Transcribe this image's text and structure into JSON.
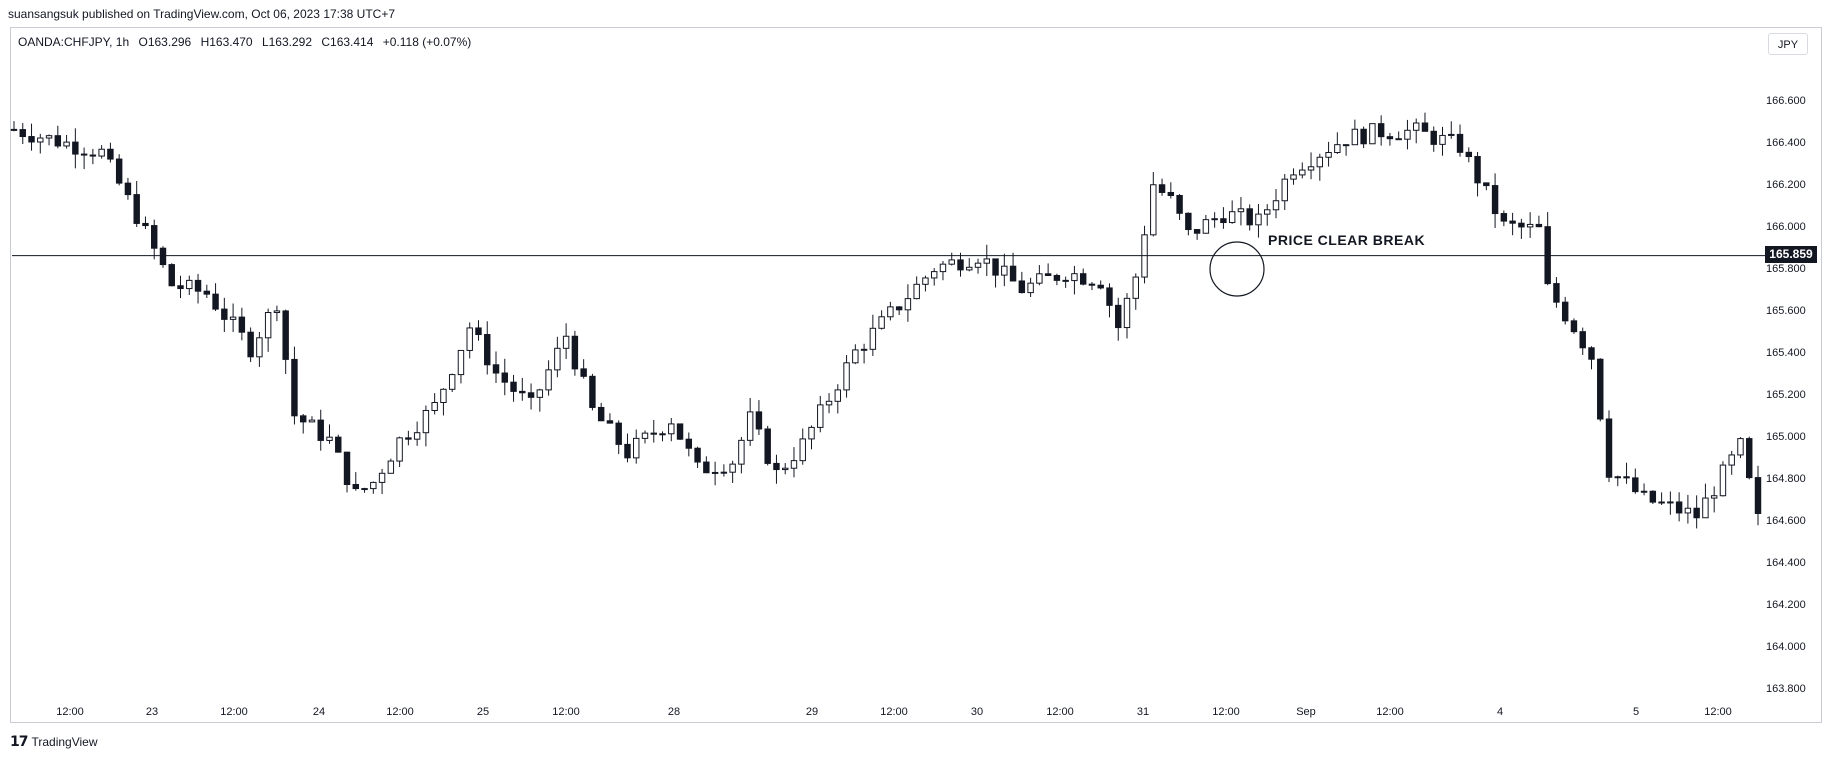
{
  "header": {
    "published": "suansangsuk published on TradingView.com, Oct 06, 2023 17:38 UTC+7"
  },
  "legend": {
    "symbol": "OANDA:CHFJPY, 1h",
    "open": "O163.296",
    "high": "H163.470",
    "low": "L163.292",
    "close": "C163.414",
    "change": "+0.118 (+0.07%)"
  },
  "currency_button": "JPY",
  "annotation": "PRICE CLEAR BREAK",
  "current_price_label": "165.859",
  "footer": {
    "brand": "TradingView",
    "logo": "17"
  },
  "colors": {
    "candle": "#131722",
    "axis_text": "#131722",
    "border": "#c9ccd3",
    "price_tag_bg": "#131722"
  },
  "chart_data": {
    "type": "candlestick",
    "title": "OANDA:CHFJPY, 1h",
    "ylabel": "JPY",
    "ylim": [
      163.7,
      166.8
    ],
    "y_ticks": [
      "166.600",
      "166.400",
      "166.200",
      "166.000",
      "165.800",
      "165.600",
      "165.400",
      "165.200",
      "165.000",
      "164.800",
      "164.600",
      "164.400",
      "164.200",
      "164.000",
      "163.800"
    ],
    "x_tick_labels": [
      "12:00",
      "23",
      "12:00",
      "24",
      "12:00",
      "25",
      "12:00",
      "28",
      "29",
      "12:00",
      "30",
      "12:00",
      "31",
      "12:00",
      "Sep",
      "12:00",
      "4",
      "5",
      "12:00"
    ],
    "horizontal_line": 165.859,
    "candle_count": 200,
    "close_path": [
      [
        0,
        166.46
      ],
      [
        10,
        166.35
      ],
      [
        14,
        166.05
      ],
      [
        18,
        165.72
      ],
      [
        22,
        165.68
      ],
      [
        27,
        165.42
      ],
      [
        30,
        165.64
      ],
      [
        32,
        165.1
      ],
      [
        36,
        164.98
      ],
      [
        39,
        164.72
      ],
      [
        41,
        164.78
      ],
      [
        44,
        164.98
      ],
      [
        48,
        165.14
      ],
      [
        52,
        165.52
      ],
      [
        55,
        165.3
      ],
      [
        59,
        165.14
      ],
      [
        63,
        165.48
      ],
      [
        66,
        165.12
      ],
      [
        70,
        164.92
      ],
      [
        75,
        165.08
      ],
      [
        78,
        164.84
      ],
      [
        82,
        164.88
      ],
      [
        84,
        165.08
      ],
      [
        87,
        164.82
      ],
      [
        90,
        164.96
      ],
      [
        96,
        165.4
      ],
      [
        100,
        165.58
      ],
      [
        105,
        165.8
      ],
      [
        110,
        165.86
      ],
      [
        115,
        165.7
      ],
      [
        120,
        165.78
      ],
      [
        124,
        165.74
      ],
      [
        126,
        165.52
      ],
      [
        128,
        165.76
      ],
      [
        130,
        166.2
      ],
      [
        132,
        166.12
      ],
      [
        134,
        165.96
      ],
      [
        138,
        166.06
      ],
      [
        142,
        166.02
      ],
      [
        146,
        166.28
      ],
      [
        152,
        166.42
      ],
      [
        156,
        166.45
      ],
      [
        160,
        166.45
      ],
      [
        165,
        166.38
      ],
      [
        170,
        166.0
      ],
      [
        174,
        165.98
      ],
      [
        175,
        165.7
      ],
      [
        178,
        165.52
      ],
      [
        180,
        165.38
      ],
      [
        182,
        164.84
      ],
      [
        186,
        164.7
      ],
      [
        192,
        164.62
      ],
      [
        197,
        164.95
      ],
      [
        199,
        164.6
      ]
    ]
  }
}
